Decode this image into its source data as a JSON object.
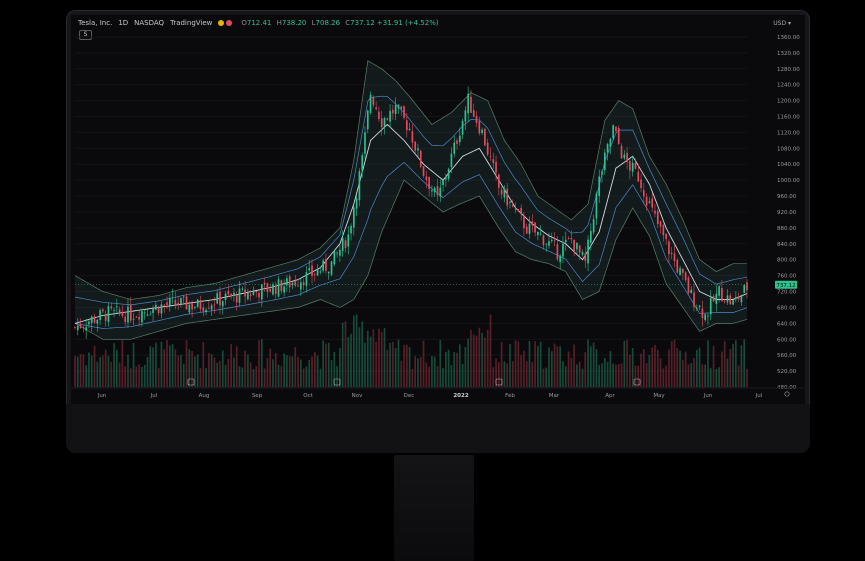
{
  "header": {
    "symbol": "Tesla, Inc.",
    "interval": "1D",
    "exchange": "NASDAQ",
    "source": "TradingView",
    "ohlc": {
      "o": "712.41",
      "h": "738.20",
      "l": "708.26",
      "c": "737.12",
      "change": "+31.91 (+4.52%)"
    }
  },
  "toolbar": {
    "s_button": "S",
    "currency": "USD",
    "settings_icon": "gear-icon"
  },
  "colors": {
    "up": "#2ec28f",
    "down": "#e8495f",
    "band": "#4f86c6",
    "band_outer": "#6b9a7a",
    "ma": "#e8eef6",
    "price_tag": "#2ec28f"
  },
  "chart_data": {
    "type": "candlestick",
    "title": "",
    "xlabel": "",
    "ylabel": "",
    "ylim": [
      480,
      1380
    ],
    "y_ticks": [
      "1360.00",
      "1320.00",
      "1280.00",
      "1240.00",
      "1200.00",
      "1160.00",
      "1120.00",
      "1080.00",
      "1040.00",
      "1000.00",
      "960.00",
      "920.00",
      "880.00",
      "840.00",
      "800.00",
      "760.00",
      "720.00",
      "680.00",
      "640.00",
      "600.00",
      "560.00",
      "520.00",
      "480.00"
    ],
    "x_ticks": [
      "Jun",
      "Jul",
      "Aug",
      "Sep",
      "Oct",
      "Nov",
      "Dec",
      "2022",
      "Feb",
      "Mar",
      "Apr",
      "May",
      "Jun",
      "Jul"
    ],
    "last_price": "737.12",
    "price_path": [
      [
        0,
        630
      ],
      [
        6,
        650
      ],
      [
        12,
        665
      ],
      [
        20,
        662
      ],
      [
        28,
        680
      ],
      [
        36,
        690
      ],
      [
        44,
        684
      ],
      [
        52,
        700
      ],
      [
        60,
        712
      ],
      [
        68,
        725
      ],
      [
        76,
        738
      ],
      [
        84,
        760
      ],
      [
        92,
        790
      ],
      [
        98,
        860
      ],
      [
        103,
        1050
      ],
      [
        106,
        1220
      ],
      [
        110,
        1150
      ],
      [
        115,
        1180
      ],
      [
        120,
        1130
      ],
      [
        125,
        1020
      ],
      [
        130,
        950
      ],
      [
        136,
        1080
      ],
      [
        141,
        1200
      ],
      [
        146,
        1120
      ],
      [
        152,
        980
      ],
      [
        157,
        930
      ],
      [
        162,
        880
      ],
      [
        167,
        860
      ],
      [
        173,
        820
      ],
      [
        178,
        850
      ],
      [
        183,
        790
      ],
      [
        188,
        1000
      ],
      [
        193,
        1130
      ],
      [
        197,
        1050
      ],
      [
        202,
        1010
      ],
      [
        207,
        920
      ],
      [
        212,
        840
      ],
      [
        216,
        780
      ],
      [
        221,
        710
      ],
      [
        226,
        660
      ],
      [
        231,
        720
      ],
      [
        236,
        690
      ],
      [
        241,
        730
      ]
    ],
    "upper_band_path": [
      [
        0,
        760
      ],
      [
        10,
        720
      ],
      [
        20,
        700
      ],
      [
        30,
        710
      ],
      [
        40,
        730
      ],
      [
        50,
        740
      ],
      [
        60,
        760
      ],
      [
        70,
        780
      ],
      [
        80,
        800
      ],
      [
        88,
        830
      ],
      [
        95,
        880
      ],
      [
        100,
        1050
      ],
      [
        105,
        1300
      ],
      [
        110,
        1280
      ],
      [
        115,
        1250
      ],
      [
        120,
        1210
      ],
      [
        128,
        1140
      ],
      [
        135,
        1170
      ],
      [
        142,
        1220
      ],
      [
        148,
        1200
      ],
      [
        154,
        1100
      ],
      [
        160,
        1040
      ],
      [
        166,
        960
      ],
      [
        172,
        930
      ],
      [
        178,
        900
      ],
      [
        184,
        940
      ],
      [
        190,
        1150
      ],
      [
        195,
        1200
      ],
      [
        200,
        1180
      ],
      [
        206,
        1060
      ],
      [
        212,
        990
      ],
      [
        218,
        900
      ],
      [
        224,
        800
      ],
      [
        230,
        770
      ],
      [
        236,
        790
      ],
      [
        241,
        790
      ]
    ],
    "lower_band_path": [
      [
        0,
        640
      ],
      [
        10,
        600
      ],
      [
        20,
        600
      ],
      [
        30,
        620
      ],
      [
        40,
        640
      ],
      [
        50,
        650
      ],
      [
        60,
        660
      ],
      [
        70,
        670
      ],
      [
        80,
        680
      ],
      [
        88,
        700
      ],
      [
        95,
        680
      ],
      [
        100,
        700
      ],
      [
        105,
        760
      ],
      [
        110,
        870
      ],
      [
        118,
        1000
      ],
      [
        125,
        960
      ],
      [
        132,
        920
      ],
      [
        138,
        940
      ],
      [
        145,
        960
      ],
      [
        152,
        880
      ],
      [
        158,
        820
      ],
      [
        164,
        800
      ],
      [
        170,
        790
      ],
      [
        176,
        770
      ],
      [
        182,
        700
      ],
      [
        188,
        720
      ],
      [
        194,
        850
      ],
      [
        200,
        930
      ],
      [
        206,
        860
      ],
      [
        212,
        740
      ],
      [
        218,
        680
      ],
      [
        224,
        620
      ],
      [
        230,
        640
      ],
      [
        236,
        640
      ],
      [
        241,
        650
      ]
    ],
    "ma_path": [
      [
        0,
        640
      ],
      [
        10,
        660
      ],
      [
        20,
        670
      ],
      [
        30,
        680
      ],
      [
        40,
        690
      ],
      [
        50,
        700
      ],
      [
        60,
        715
      ],
      [
        70,
        730
      ],
      [
        80,
        750
      ],
      [
        88,
        780
      ],
      [
        95,
        840
      ],
      [
        100,
        940
      ],
      [
        106,
        1100
      ],
      [
        112,
        1140
      ],
      [
        118,
        1100
      ],
      [
        125,
        1040
      ],
      [
        132,
        1000
      ],
      [
        139,
        1060
      ],
      [
        145,
        1080
      ],
      [
        152,
        1000
      ],
      [
        158,
        930
      ],
      [
        164,
        890
      ],
      [
        170,
        860
      ],
      [
        176,
        840
      ],
      [
        182,
        800
      ],
      [
        188,
        870
      ],
      [
        194,
        1030
      ],
      [
        200,
        1060
      ],
      [
        206,
        990
      ],
      [
        212,
        880
      ],
      [
        218,
        800
      ],
      [
        224,
        720
      ],
      [
        230,
        700
      ],
      [
        236,
        700
      ],
      [
        241,
        715
      ]
    ],
    "volume_note": "daily volume histogram"
  }
}
